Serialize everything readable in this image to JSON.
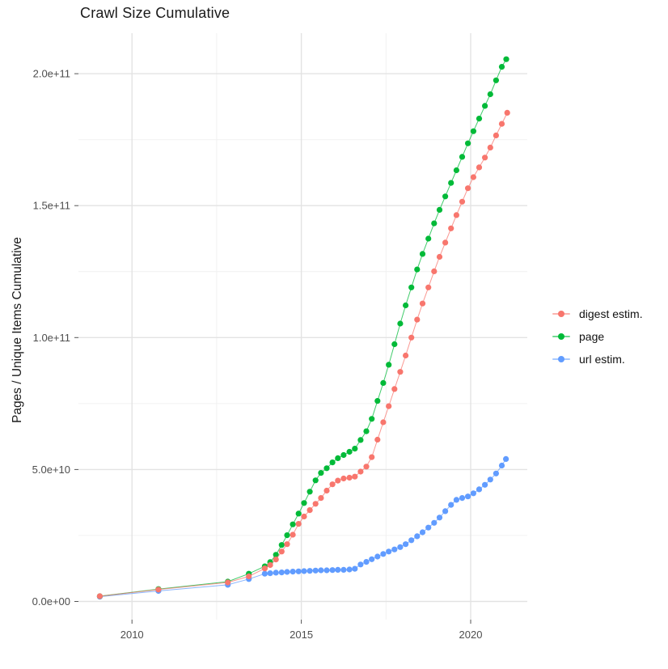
{
  "title": "Crawl Size Cumulative",
  "axes": {
    "x_ticks": [
      {
        "value": 2010,
        "label": "2010"
      },
      {
        "value": 2015,
        "label": "2015"
      },
      {
        "value": 2020,
        "label": "2020"
      }
    ],
    "x_minor_ticks": [
      2012.5,
      2017.5
    ],
    "y_ticks": [
      {
        "value": 0,
        "label": "0.0e+00"
      },
      {
        "value": 50000000000.0,
        "label": "5.0e+10"
      },
      {
        "value": 100000000000.0,
        "label": "1.0e+11"
      },
      {
        "value": 150000000000.0,
        "label": "1.5e+11"
      },
      {
        "value": 200000000000.0,
        "label": "2.0e+11"
      }
    ],
    "y_minor_ticks": [
      25000000000.0,
      75000000000.0,
      125000000000.0,
      175000000000.0
    ]
  },
  "style": {
    "grid_major_color": "#e3e3e3",
    "grid_minor_color": "#f0f0f0",
    "tick_color": "#555555",
    "tick_label_color": "#4d4d4d"
  },
  "chart_data": {
    "type": "scatter",
    "title": "Crawl Size Cumulative",
    "xlabel": "",
    "ylabel": "Pages / Unique Items Cumulative",
    "xlim": [
      2008.6,
      2021.7
    ],
    "ylim": [
      0,
      216000000000.0
    ],
    "grid": true,
    "legend_position": "right",
    "series": [
      {
        "name": "digest estim.",
        "color": "#F8766D",
        "points": [
          [
            2009.05,
            2000000000.0
          ],
          [
            2010.78,
            4500000000.0
          ],
          [
            2012.83,
            7200000000.0
          ],
          [
            2013.45,
            9500000000.0
          ],
          [
            2013.92,
            12500000000.0
          ],
          [
            2014.08,
            13800000000.0
          ],
          [
            2014.25,
            15900000000.0
          ],
          [
            2014.42,
            18900000000.0
          ],
          [
            2014.58,
            21700000000.0
          ],
          [
            2014.75,
            25300000000.0
          ],
          [
            2014.92,
            29400000000.0
          ],
          [
            2015.08,
            32200000000.0
          ],
          [
            2015.25,
            34600000000.0
          ],
          [
            2015.42,
            37000000000.0
          ],
          [
            2015.58,
            39200000000.0
          ],
          [
            2015.75,
            42000000000.0
          ],
          [
            2015.92,
            44400000000.0
          ],
          [
            2016.08,
            45800000000.0
          ],
          [
            2016.25,
            46600000000.0
          ],
          [
            2016.42,
            46900000000.0
          ],
          [
            2016.58,
            47300000000.0
          ],
          [
            2016.75,
            49200000000.0
          ],
          [
            2016.92,
            51100000000.0
          ],
          [
            2017.08,
            54700000000.0
          ],
          [
            2017.25,
            61300000000.0
          ],
          [
            2017.42,
            67900000000.0
          ],
          [
            2017.58,
            74000000000.0
          ],
          [
            2017.75,
            80500000000.0
          ],
          [
            2017.92,
            87000000000.0
          ],
          [
            2018.08,
            93200000000.0
          ],
          [
            2018.25,
            100000000000.0
          ],
          [
            2018.42,
            106800000000.0
          ],
          [
            2018.58,
            112900000000.0
          ],
          [
            2018.75,
            119000000000.0
          ],
          [
            2018.92,
            125100000000.0
          ],
          [
            2019.08,
            130600000000.0
          ],
          [
            2019.25,
            136000000000.0
          ],
          [
            2019.42,
            141400000000.0
          ],
          [
            2019.58,
            146400000000.0
          ],
          [
            2019.75,
            151500000000.0
          ],
          [
            2019.92,
            156600000000.0
          ],
          [
            2020.08,
            160800000000.0
          ],
          [
            2020.25,
            164500000000.0
          ],
          [
            2020.42,
            168200000000.0
          ],
          [
            2020.58,
            172000000000.0
          ],
          [
            2020.75,
            176600000000.0
          ],
          [
            2020.92,
            181000000000.0
          ],
          [
            2021.08,
            185200000000.0
          ]
        ]
      },
      {
        "name": "page",
        "color": "#00BA38",
        "points": [
          [
            2009.05,
            2000000000.0
          ],
          [
            2010.78,
            4700000000.0
          ],
          [
            2012.83,
            7500000000.0
          ],
          [
            2013.45,
            10500000000.0
          ],
          [
            2013.92,
            13300000000.0
          ],
          [
            2014.08,
            14900000000.0
          ],
          [
            2014.25,
            17700000000.0
          ],
          [
            2014.42,
            21400000000.0
          ],
          [
            2014.58,
            25100000000.0
          ],
          [
            2014.75,
            29200000000.0
          ],
          [
            2014.92,
            33300000000.0
          ],
          [
            2015.08,
            37300000000.0
          ],
          [
            2015.25,
            41600000000.0
          ],
          [
            2015.42,
            45900000000.0
          ],
          [
            2015.58,
            48700000000.0
          ],
          [
            2015.75,
            50500000000.0
          ],
          [
            2015.92,
            52700000000.0
          ],
          [
            2016.08,
            54300000000.0
          ],
          [
            2016.25,
            55500000000.0
          ],
          [
            2016.42,
            56700000000.0
          ],
          [
            2016.58,
            57900000000.0
          ],
          [
            2016.75,
            61200000000.0
          ],
          [
            2016.92,
            64500000000.0
          ],
          [
            2017.08,
            69200000000.0
          ],
          [
            2017.25,
            76000000000.0
          ],
          [
            2017.42,
            82800000000.0
          ],
          [
            2017.58,
            89700000000.0
          ],
          [
            2017.75,
            97500000000.0
          ],
          [
            2017.92,
            105300000000.0
          ],
          [
            2018.08,
            112200000000.0
          ],
          [
            2018.25,
            119000000000.0
          ],
          [
            2018.42,
            125800000000.0
          ],
          [
            2018.58,
            131700000000.0
          ],
          [
            2018.75,
            137500000000.0
          ],
          [
            2018.92,
            143300000000.0
          ],
          [
            2019.08,
            148400000000.0
          ],
          [
            2019.25,
            153500000000.0
          ],
          [
            2019.42,
            158600000000.0
          ],
          [
            2019.58,
            163400000000.0
          ],
          [
            2019.75,
            168500000000.0
          ],
          [
            2019.92,
            173600000000.0
          ],
          [
            2020.08,
            178200000000.0
          ],
          [
            2020.25,
            183000000000.0
          ],
          [
            2020.42,
            187800000000.0
          ],
          [
            2020.58,
            192200000000.0
          ],
          [
            2020.75,
            197500000000.0
          ],
          [
            2020.92,
            202600000000.0
          ],
          [
            2021.05,
            205500000000.0
          ]
        ]
      },
      {
        "name": "url estim.",
        "color": "#619CFF",
        "points": [
          [
            2009.05,
            1800000000.0
          ],
          [
            2010.78,
            4000000000.0
          ],
          [
            2012.83,
            6300000000.0
          ],
          [
            2013.45,
            8500000000.0
          ],
          [
            2013.92,
            10500000000.0
          ],
          [
            2014.08,
            10700000000.0
          ],
          [
            2014.25,
            10900000000.0
          ],
          [
            2014.42,
            11000000000.0
          ],
          [
            2014.58,
            11200000000.0
          ],
          [
            2014.75,
            11300000000.0
          ],
          [
            2014.92,
            11400000000.0
          ],
          [
            2015.08,
            11500000000.0
          ],
          [
            2015.25,
            11600000000.0
          ],
          [
            2015.42,
            11700000000.0
          ],
          [
            2015.58,
            11800000000.0
          ],
          [
            2015.75,
            11800000000.0
          ],
          [
            2015.92,
            11900000000.0
          ],
          [
            2016.08,
            12000000000.0
          ],
          [
            2016.25,
            12000000000.0
          ],
          [
            2016.42,
            12100000000.0
          ],
          [
            2016.58,
            12400000000.0
          ],
          [
            2016.75,
            14000000000.0
          ],
          [
            2016.92,
            15000000000.0
          ],
          [
            2017.08,
            16000000000.0
          ],
          [
            2017.25,
            17000000000.0
          ],
          [
            2017.42,
            18000000000.0
          ],
          [
            2017.58,
            18900000000.0
          ],
          [
            2017.75,
            19700000000.0
          ],
          [
            2017.92,
            20600000000.0
          ],
          [
            2018.08,
            21700000000.0
          ],
          [
            2018.25,
            23200000000.0
          ],
          [
            2018.42,
            24700000000.0
          ],
          [
            2018.58,
            26200000000.0
          ],
          [
            2018.75,
            28000000000.0
          ],
          [
            2018.92,
            29800000000.0
          ],
          [
            2019.08,
            31800000000.0
          ],
          [
            2019.25,
            34200000000.0
          ],
          [
            2019.42,
            36600000000.0
          ],
          [
            2019.58,
            38500000000.0
          ],
          [
            2019.75,
            39200000000.0
          ],
          [
            2019.92,
            39800000000.0
          ],
          [
            2020.08,
            41000000000.0
          ],
          [
            2020.25,
            42500000000.0
          ],
          [
            2020.42,
            44200000000.0
          ],
          [
            2020.58,
            46200000000.0
          ],
          [
            2020.75,
            48500000000.0
          ],
          [
            2020.92,
            51500000000.0
          ],
          [
            2021.04,
            54000000000.0
          ]
        ]
      }
    ]
  }
}
